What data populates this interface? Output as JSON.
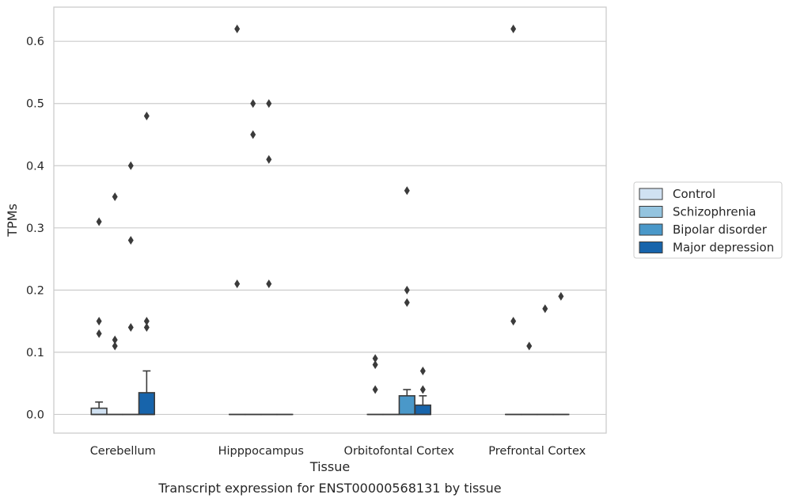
{
  "chart_data": {
    "type": "box",
    "xlabel": "Tissue",
    "ylabel": "TPMs",
    "caption": "Transcript expression for ENST00000568131 by tissue",
    "categories": [
      "Cerebellum",
      "Hipppocampus",
      "Orbitofontal Cortex",
      "Prefrontal Cortex"
    ],
    "ylim": [
      -0.03,
      0.655
    ],
    "yticks": [
      0.0,
      0.1,
      0.2,
      0.3,
      0.4,
      0.5,
      0.6
    ],
    "ytick_labels": [
      "0.0",
      "0.1",
      "0.2",
      "0.3",
      "0.4",
      "0.5",
      "0.6"
    ],
    "grid": "horizontal",
    "legend_position": "right",
    "series": [
      {
        "name": "Control",
        "color": "#d0e1f2",
        "boxes": [
          {
            "q1": 0.0,
            "median": 0.0,
            "q3": 0.01,
            "whisker_low": 0.0,
            "whisker_high": 0.02,
            "outliers": [
              0.31,
              0.15,
              0.13
            ]
          },
          {
            "q1": 0.0,
            "median": 0.0,
            "q3": 0.0,
            "whisker_low": 0.0,
            "whisker_high": 0.0,
            "outliers": [
              0.21,
              0.62
            ]
          },
          {
            "q1": 0.0,
            "median": 0.0,
            "q3": 0.0,
            "whisker_low": 0.0,
            "whisker_high": 0.0,
            "outliers": [
              0.09,
              0.08,
              0.04
            ]
          },
          {
            "q1": 0.0,
            "median": 0.0,
            "q3": 0.0,
            "whisker_low": 0.0,
            "whisker_high": 0.0,
            "outliers": [
              0.62,
              0.15
            ]
          }
        ]
      },
      {
        "name": "Schizophrenia",
        "color": "#94c4df",
        "boxes": [
          {
            "q1": 0.0,
            "median": 0.0,
            "q3": 0.0,
            "whisker_low": 0.0,
            "whisker_high": 0.0,
            "outliers": [
              0.35,
              0.12,
              0.11
            ]
          },
          {
            "q1": 0.0,
            "median": 0.0,
            "q3": 0.0,
            "whisker_low": 0.0,
            "whisker_high": 0.0,
            "outliers": [
              0.5,
              0.45
            ]
          },
          {
            "q1": 0.0,
            "median": 0.0,
            "q3": 0.0,
            "whisker_low": 0.0,
            "whisker_high": 0.0,
            "outliers": []
          },
          {
            "q1": 0.0,
            "median": 0.0,
            "q3": 0.0,
            "whisker_low": 0.0,
            "whisker_high": 0.0,
            "outliers": [
              0.11
            ]
          }
        ]
      },
      {
        "name": "Bipolar disorder",
        "color": "#4a98c9",
        "boxes": [
          {
            "q1": 0.0,
            "median": 0.0,
            "q3": 0.0,
            "whisker_low": 0.0,
            "whisker_high": 0.0,
            "outliers": [
              0.4,
              0.28,
              0.14
            ]
          },
          {
            "q1": 0.0,
            "median": 0.0,
            "q3": 0.0,
            "whisker_low": 0.0,
            "whisker_high": 0.0,
            "outliers": [
              0.5,
              0.41,
              0.21
            ]
          },
          {
            "q1": 0.0,
            "median": 0.0,
            "q3": 0.03,
            "whisker_low": 0.0,
            "whisker_high": 0.04,
            "outliers": [
              0.36,
              0.2,
              0.18
            ]
          },
          {
            "q1": 0.0,
            "median": 0.0,
            "q3": 0.0,
            "whisker_low": 0.0,
            "whisker_high": 0.0,
            "outliers": [
              0.17
            ]
          }
        ]
      },
      {
        "name": "Major depression",
        "color": "#1764ab",
        "boxes": [
          {
            "q1": 0.0,
            "median": 0.0,
            "q3": 0.035,
            "whisker_low": 0.0,
            "whisker_high": 0.07,
            "outliers": [
              0.48,
              0.15,
              0.14
            ]
          },
          {
            "q1": 0.0,
            "median": 0.0,
            "q3": 0.0,
            "whisker_low": 0.0,
            "whisker_high": 0.0,
            "outliers": []
          },
          {
            "q1": 0.0,
            "median": 0.0,
            "q3": 0.015,
            "whisker_low": 0.0,
            "whisker_high": 0.03,
            "outliers": [
              0.07,
              0.04
            ]
          },
          {
            "q1": 0.0,
            "median": 0.0,
            "q3": 0.0,
            "whisker_low": 0.0,
            "whisker_high": 0.0,
            "outliers": [
              0.19
            ]
          }
        ]
      }
    ]
  }
}
